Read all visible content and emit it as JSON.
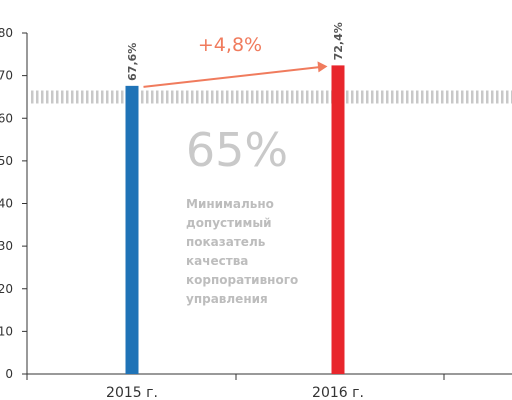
{
  "chart_data": {
    "type": "bar",
    "categories": [
      "2015 г.",
      "2016 г."
    ],
    "values": [
      67.6,
      72.4
    ],
    "value_labels": [
      "67,6%",
      "72,4%"
    ],
    "ylim": [
      0,
      80
    ],
    "y_ticks": [
      0,
      10,
      20,
      30,
      40,
      50,
      60,
      70,
      80
    ],
    "bar_colors": [
      "#1f73b7",
      "#e8262c"
    ],
    "grid": false,
    "threshold": {
      "value": 65,
      "label": "65%",
      "caption": [
        "Минимально",
        "допустимый",
        "показатель",
        "качества",
        "корпоративного",
        "управления"
      ],
      "color": "#c8c8c8"
    },
    "change_annotation": {
      "label": "+4,8%",
      "color": "#f07b5d"
    }
  }
}
